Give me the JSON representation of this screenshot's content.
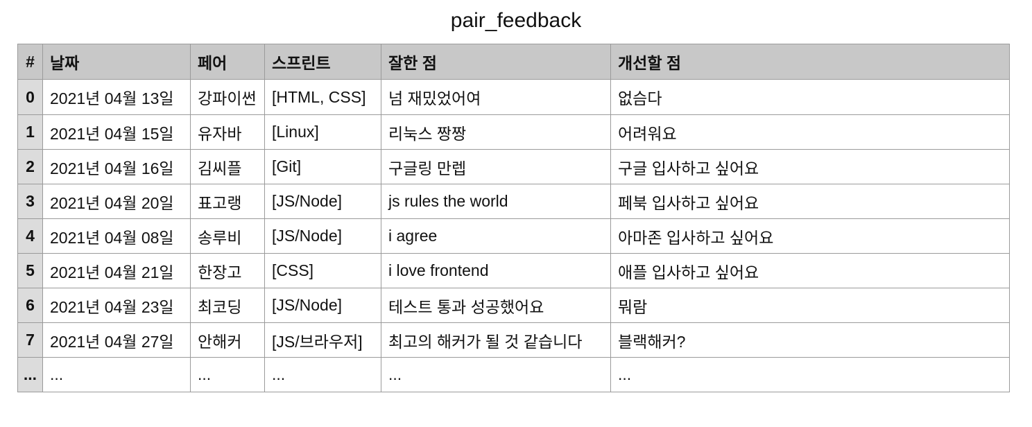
{
  "title": "pair_feedback",
  "columns": [
    "#",
    "날짜",
    "페어",
    "스프린트",
    "잘한 점",
    "개선할 점"
  ],
  "rows": [
    [
      "0",
      "2021년 04월 13일",
      "강파이썬",
      "[HTML, CSS]",
      "넘 재밌었어여",
      "없슴다"
    ],
    [
      "1",
      "2021년 04월 15일",
      "유자바",
      "[Linux]",
      "리눅스 짱짱",
      "어려워요"
    ],
    [
      "2",
      "2021년 04월 16일",
      "김씨플",
      "[Git]",
      "구글링 만렙",
      "구글 입사하고 싶어요"
    ],
    [
      "3",
      "2021년 04월 20일",
      "표고랭",
      "[JS/Node]",
      "js rules the world",
      "페북 입사하고 싶어요"
    ],
    [
      "4",
      "2021년 04월 08일",
      "송루비",
      "[JS/Node]",
      "i agree",
      "아마존 입사하고 싶어요"
    ],
    [
      "5",
      "2021년 04월 21일",
      "한장고",
      "[CSS]",
      "i love frontend",
      "애플 입사하고 싶어요"
    ],
    [
      "6",
      "2021년 04월 23일",
      "최코딩",
      "[JS/Node]",
      "테스트 통과 성공했어요",
      "뭐람"
    ],
    [
      "7",
      "2021년 04월 27일",
      "안해커",
      "[JS/브라우저]",
      "최고의 해커가 될 것 같습니다",
      "블랙해커?"
    ],
    [
      "...",
      "...",
      "...",
      "...",
      "...",
      "..."
    ]
  ]
}
